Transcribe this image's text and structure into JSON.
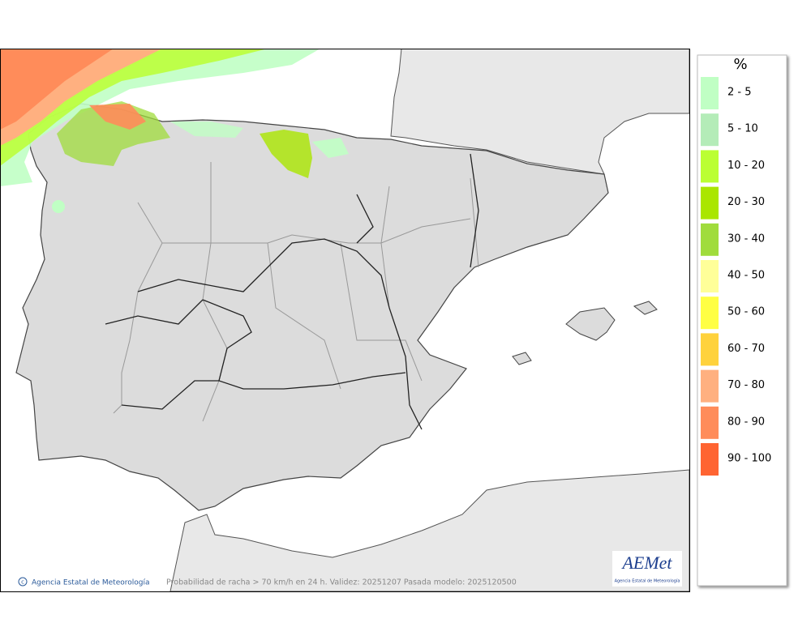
{
  "legend": {
    "title": "%",
    "items": [
      {
        "label": "2 - 5",
        "color": "#c0ffc4"
      },
      {
        "label": "5 - 10",
        "color": "#b4ecb8"
      },
      {
        "label": "10 - 20",
        "color": "#bbff33"
      },
      {
        "label": "20 - 30",
        "color": "#aae600"
      },
      {
        "label": "30 - 40",
        "color": "#a0dc3c"
      },
      {
        "label": "40 - 50",
        "color": "#ffff99"
      },
      {
        "label": "50 - 60",
        "color": "#ffff44"
      },
      {
        "label": "60 - 70",
        "color": "#ffd23c"
      },
      {
        "label": "70 - 80",
        "color": "#ffb080"
      },
      {
        "label": "80 - 90",
        "color": "#ff8c5a"
      },
      {
        "label": "90 - 100",
        "color": "#ff6432"
      }
    ]
  },
  "footer": {
    "credit": "Agencia Estatal de Meteorología",
    "caption": "Probabilidad de racha > 70 km/h en 24 h. Validez: 20251207 Pasada modelo: 2025120500"
  },
  "logo": {
    "text": "AEMet",
    "subtitle": "Agencia Estatal de Meteorología"
  }
}
